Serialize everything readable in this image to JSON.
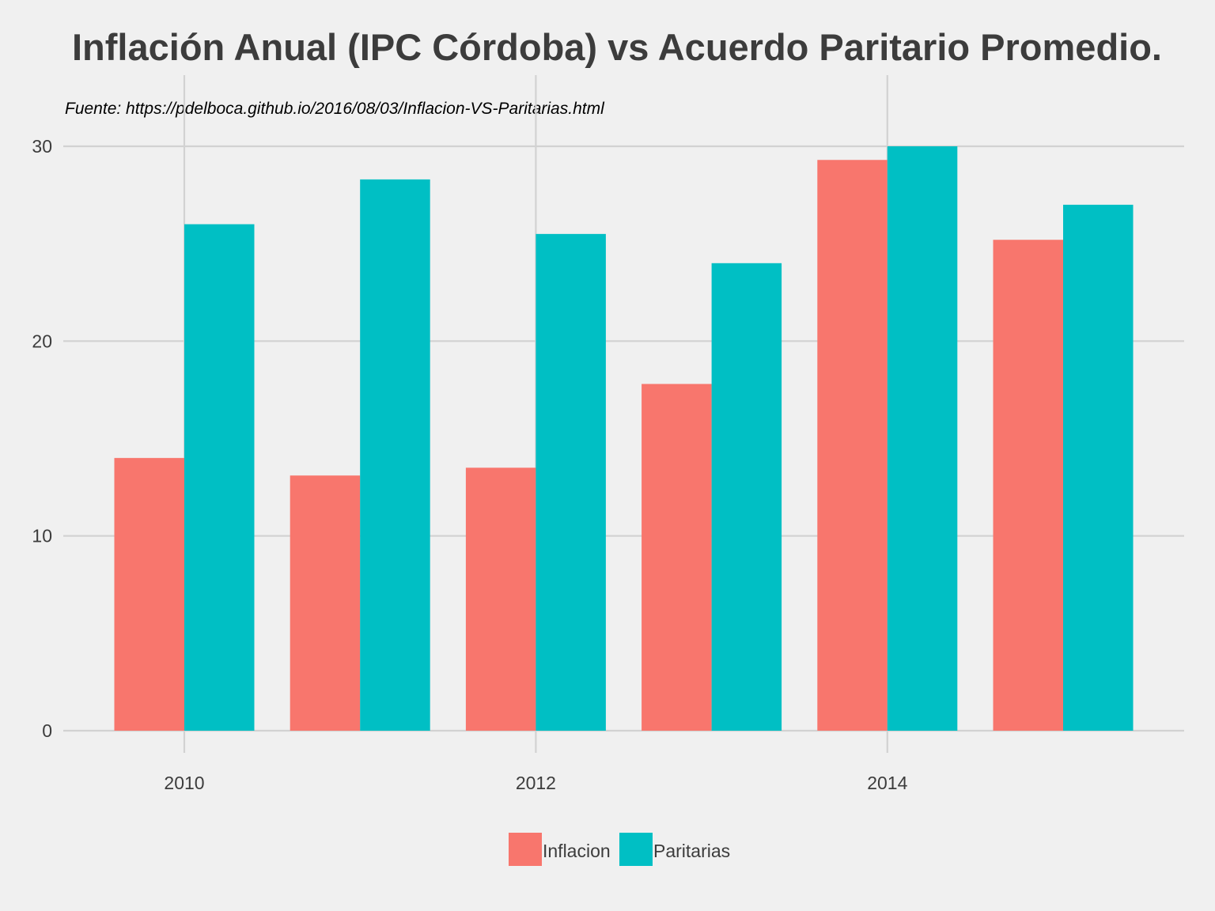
{
  "chart_data": {
    "type": "bar",
    "title": "Inflación Anual (IPC Córdoba) vs Acuerdo Paritario Promedio.",
    "subtitle": "Fuente: https://pdelboca.github.io/2016/08/03/Inflacion-VS-Paritarias.html",
    "categories": [
      2010,
      2011,
      2012,
      2013,
      2014,
      2015
    ],
    "x_tick_labels": [
      "2010",
      "2012",
      "2014"
    ],
    "x_tick_values": [
      2010,
      2012,
      2014
    ],
    "y_tick_labels": [
      "0",
      "10",
      "20",
      "30"
    ],
    "y_tick_values": [
      0,
      10,
      20,
      30
    ],
    "ylim": [
      0,
      30
    ],
    "series": [
      {
        "name": "Inflacion",
        "color": "#f8766d",
        "values": [
          14.0,
          13.1,
          13.5,
          17.8,
          29.3,
          25.2
        ]
      },
      {
        "name": "Paritarias",
        "color": "#00bfc4",
        "values": [
          26.0,
          28.3,
          25.5,
          24.0,
          30.0,
          27.0
        ]
      }
    ],
    "grid": true,
    "legend_position": "bottom"
  }
}
